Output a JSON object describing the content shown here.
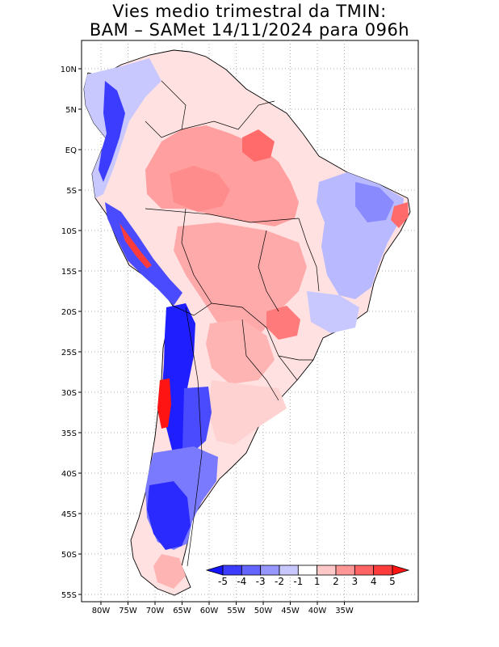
{
  "title_line1": "Vies medio trimestral da TMIN:",
  "title_line2": "BAM – SAMet 14/11/2024  para 096h",
  "map": {
    "lon_ticks": [
      "80W",
      "75W",
      "70W",
      "65W",
      "60W",
      "55W",
      "50W",
      "45W",
      "40W",
      "35W"
    ],
    "lat_ticks": [
      "10N",
      "5N",
      "EQ",
      "5S",
      "10S",
      "15S",
      "20S",
      "25S",
      "30S",
      "35S",
      "40S",
      "45S",
      "50S",
      "55S"
    ],
    "grid": true,
    "grid_style": "dotted"
  },
  "colorbar": {
    "labels": [
      "-5",
      "-4",
      "-3",
      "-2",
      "-1",
      "1",
      "2",
      "3",
      "4",
      "5"
    ],
    "colors": [
      "#1414ff",
      "#3c3cff",
      "#6464ff",
      "#9696ff",
      "#c8c8ff",
      "#ffffff",
      "#ffc8c8",
      "#ff9696",
      "#ff6464",
      "#ff3c3c",
      "#ff1414"
    ]
  },
  "palette": {
    "cold_strong": "#1e1eff",
    "cold_mid": "#7a7aff",
    "cold_light": "#c8c8ff",
    "warm_light": "#ffd2d2",
    "warm_mid": "#ff9a9a",
    "warm_strong": "#ff4a4a"
  }
}
